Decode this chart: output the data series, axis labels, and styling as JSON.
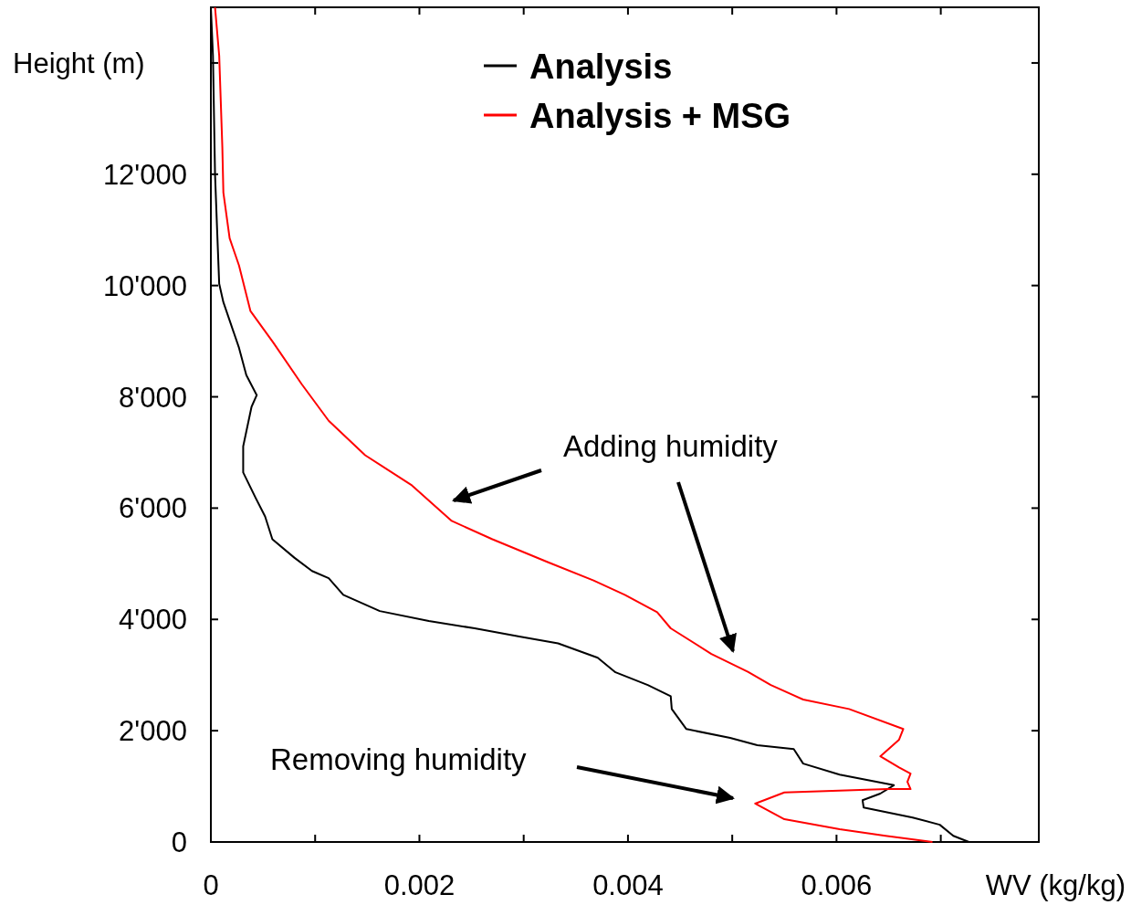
{
  "chart_data": {
    "type": "line",
    "xlabel": "WV (kg/kg)",
    "ylabel": "Height (m)",
    "xlim": [
      0,
      0.00794
    ],
    "ylim": [
      0,
      15000
    ],
    "xticks": [
      0,
      {
        "value": 0.001,
        "label": null
      },
      0.002,
      {
        "value": 0.003,
        "label": null
      },
      0.004,
      {
        "value": 0.005,
        "label": null
      },
      0.006,
      {
        "value": 0.007,
        "label": null
      }
    ],
    "yticks": [
      0,
      {
        "value": 2000,
        "label": "2'000"
      },
      {
        "value": 4000,
        "label": "4'000"
      },
      {
        "value": 6000,
        "label": "6'000"
      },
      {
        "value": 8000,
        "label": "8'000"
      },
      {
        "value": 10000,
        "label": "10'000"
      },
      {
        "value": 12000,
        "label": "12'000"
      },
      {
        "value": 14000,
        "label": null
      }
    ],
    "grid": false,
    "legend": "top",
    "marker": "none",
    "line_style": "solid",
    "annotations": [
      "Adding humidity",
      "Removing humidity"
    ],
    "series": [
      {
        "name": "Analysis",
        "color": "#000000",
        "x": [
          0,
          2e-05,
          4e-05,
          6e-05,
          8e-05,
          0.00012,
          0.00027,
          0.00034,
          0.00044,
          0.00039,
          0.00031,
          0.00031,
          0.00043,
          0.00052,
          0.00059,
          0.0008,
          0.00097,
          0.00113,
          0.00127,
          0.00162,
          0.00209,
          0.00253,
          0.00297,
          0.00333,
          0.00371,
          0.00388,
          0.00419,
          0.00441,
          0.00442,
          0.00456,
          0.00498,
          0.00524,
          0.00559,
          0.00568,
          0.00603,
          0.00655,
          0.00642,
          0.00625,
          0.00626,
          0.00673,
          0.00699,
          0.00712,
          0.00727
        ],
        "values": [
          15000,
          14130,
          12000,
          11000,
          10030,
          9700,
          8880,
          8390,
          8030,
          7820,
          7110,
          6640,
          6180,
          5850,
          5440,
          5110,
          4870,
          4740,
          4440,
          4150,
          3970,
          3840,
          3690,
          3570,
          3310,
          3050,
          2820,
          2620,
          2390,
          2030,
          1870,
          1740,
          1670,
          1410,
          1210,
          1020,
          870,
          750,
          620,
          440,
          310,
          110,
          0
        ]
      },
      {
        "name": "Analysis + MSG",
        "color": "#ff0000",
        "x": [
          4e-05,
          8e-05,
          0.00011,
          0.00012,
          0.00018,
          0.00027,
          0.00038,
          0.0006,
          0.00087,
          0.00113,
          0.00148,
          0.00192,
          0.00231,
          0.0027,
          0.00323,
          0.00367,
          0.00397,
          0.00428,
          0.00441,
          0.0048,
          0.00515,
          0.00537,
          0.00568,
          0.00612,
          0.00664,
          0.0066,
          0.00642,
          0.0066,
          0.00671,
          0.00668,
          0.00671,
          0.00649,
          0.0055,
          0.00522,
          0.0055,
          0.00603,
          0.00647,
          0.00692
        ],
        "values": [
          15000,
          14130,
          12490,
          11670,
          10850,
          10360,
          9540,
          8970,
          8230,
          7570,
          6950,
          6420,
          5770,
          5440,
          5030,
          4700,
          4440,
          4130,
          3840,
          3380,
          3060,
          2820,
          2560,
          2390,
          2030,
          1840,
          1540,
          1340,
          1230,
          1080,
          950,
          950,
          890,
          690,
          410,
          230,
          110,
          0
        ]
      }
    ]
  }
}
